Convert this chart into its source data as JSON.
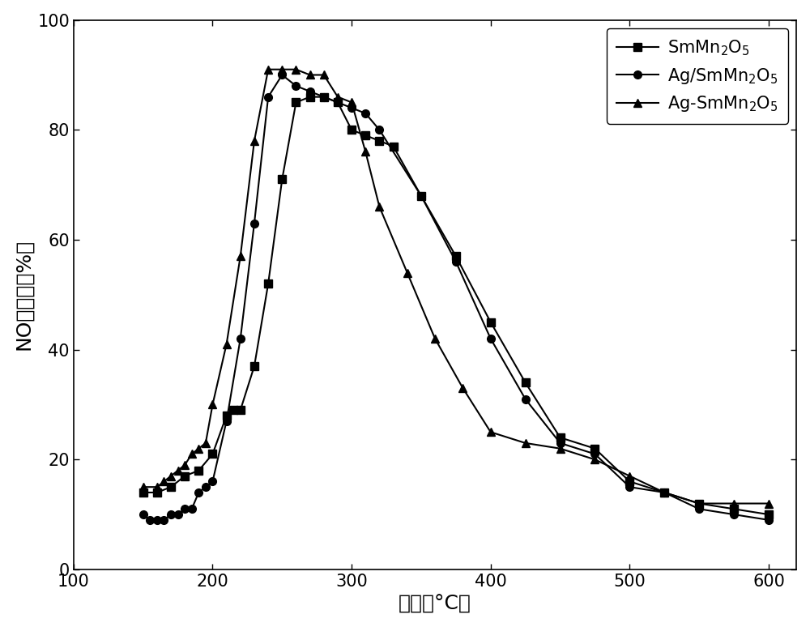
{
  "series": {
    "SmMn2O5": {
      "x": [
        150,
        160,
        170,
        180,
        190,
        200,
        210,
        215,
        220,
        230,
        240,
        250,
        260,
        270,
        280,
        290,
        300,
        310,
        320,
        330,
        350,
        375,
        400,
        425,
        450,
        475,
        500,
        525,
        550,
        575,
        600
      ],
      "y": [
        14,
        14,
        15,
        17,
        18,
        21,
        28,
        29,
        29,
        37,
        52,
        71,
        85,
        86,
        86,
        85,
        80,
        79,
        78,
        77,
        68,
        57,
        45,
        34,
        24,
        22,
        16,
        14,
        12,
        11,
        10
      ],
      "marker": "s",
      "label": "SmMn$_2$O$_5$"
    },
    "Ag_SmMn2O5": {
      "x": [
        150,
        155,
        160,
        165,
        170,
        175,
        180,
        185,
        190,
        195,
        200,
        210,
        220,
        230,
        240,
        250,
        260,
        270,
        280,
        290,
        300,
        310,
        320,
        350,
        375,
        400,
        425,
        450,
        475,
        500,
        525,
        550,
        575,
        600
      ],
      "y": [
        10,
        9,
        9,
        9,
        10,
        10,
        11,
        11,
        14,
        15,
        16,
        27,
        42,
        63,
        86,
        90,
        88,
        87,
        86,
        85,
        84,
        83,
        80,
        68,
        56,
        42,
        31,
        23,
        21,
        15,
        14,
        11,
        10,
        9
      ],
      "marker": "o",
      "label": "Ag/SmMn$_2$O$_5$"
    },
    "Ag_SmMn2O5_doped": {
      "x": [
        150,
        160,
        165,
        170,
        175,
        180,
        185,
        190,
        195,
        200,
        210,
        220,
        230,
        240,
        250,
        260,
        270,
        280,
        290,
        300,
        310,
        320,
        340,
        360,
        380,
        400,
        425,
        450,
        475,
        500,
        525,
        550,
        575,
        600
      ],
      "y": [
        15,
        15,
        16,
        17,
        18,
        19,
        21,
        22,
        23,
        30,
        41,
        57,
        78,
        91,
        91,
        91,
        90,
        90,
        86,
        85,
        76,
        66,
        54,
        42,
        33,
        25,
        23,
        22,
        20,
        17,
        14,
        12,
        12,
        12
      ],
      "marker": "^",
      "label": "Ag-SmMn$_2$O$_5$"
    }
  },
  "xlabel": "温度（°C）",
  "ylabel": "NO转化率（%）",
  "xlim": [
    100,
    620
  ],
  "ylim": [
    0,
    100
  ],
  "xticks": [
    100,
    200,
    300,
    400,
    500,
    600
  ],
  "yticks": [
    0,
    20,
    40,
    60,
    80,
    100
  ],
  "color": "#000000",
  "linewidth": 1.5,
  "markersize": 7,
  "legend_loc": "upper right",
  "legend_fontsize": 15,
  "axis_label_fontsize": 18,
  "tick_fontsize": 15,
  "background_color": "#ffffff",
  "figwidth": 10.0,
  "figheight": 7.74,
  "dpi": 100
}
